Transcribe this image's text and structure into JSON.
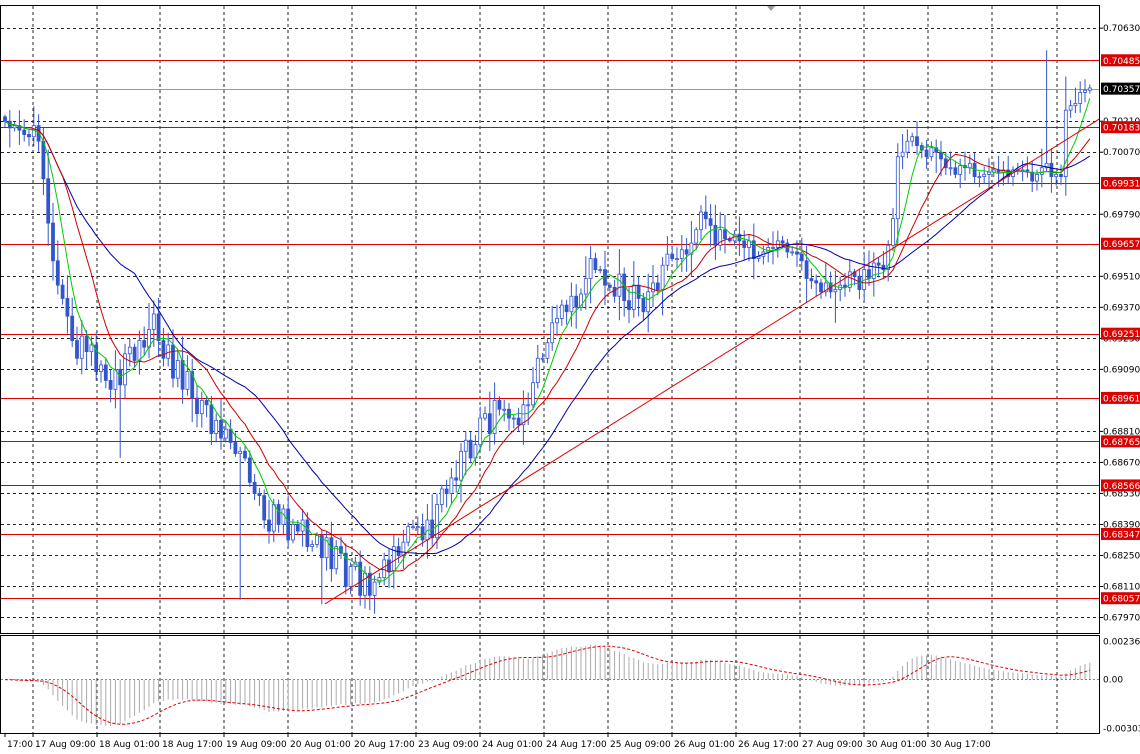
{
  "colors": {
    "background": "#ffffff",
    "grid": "#000000",
    "candles": "#3355cc",
    "ma_fast": "#00cc00",
    "ma_mid": "#cc0000",
    "ma_slow": "#0000aa",
    "level_lines": "#dd0000",
    "trend_line": "#dd0000",
    "current_price_bg": "#000000",
    "level_label_bg": "#dd0000",
    "label_text": "#ffffff",
    "axis_text": "#000000",
    "osc_hist": "#aaaaaa",
    "osc_signal": "#dd0000"
  },
  "chart_data": {
    "type": "candlestick",
    "price_axis_ticks": [
      "0.70630",
      "0.70210",
      "0.70070",
      "0.69790",
      "0.69510",
      "0.69370",
      "0.69230",
      "0.69090",
      "0.68810",
      "0.68670",
      "0.68530",
      "0.68390",
      "0.68250",
      "0.68110",
      "0.67970"
    ],
    "level_labels": [
      "0.70485",
      "0.70183",
      "0.69931",
      "0.69657",
      "0.69251",
      "0.68961",
      "0.68765",
      "0.68566",
      "0.68347",
      "0.68057"
    ],
    "current_price": "0.70357",
    "ylim": [
      0.679,
      0.7073
    ],
    "time_labels": [
      "17:00",
      "17 Aug 09:00",
      "18 Aug 01:00",
      "18 Aug 17:00",
      "19 Aug 09:00",
      "20 Aug 01:00",
      "20 Aug 17:00",
      "23 Aug 09:00",
      "24 Aug 01:00",
      "24 Aug 17:00",
      "25 Aug 09:00",
      "26 Aug 01:00",
      "26 Aug 17:00",
      "27 Aug 09:00",
      "30 Aug 01:00",
      "30 Aug 17:00"
    ],
    "trend_line": {
      "from": {
        "bar": 40,
        "price": 0.68031
      },
      "to": {
        "bar": 223,
        "price": 0.70219
      }
    },
    "close": [
      0.7021,
      0.7018,
      0.7019,
      0.7017,
      0.7015,
      0.7014,
      0.7019,
      0.7012,
      0.6995,
      0.6975,
      0.6958,
      0.6947,
      0.6941,
      0.6933,
      0.6922,
      0.6914,
      0.6924,
      0.6917,
      0.692,
      0.6908,
      0.6911,
      0.6904,
      0.69,
      0.6909,
      0.6902,
      0.6916,
      0.6919,
      0.6913,
      0.6922,
      0.6919,
      0.6927,
      0.6934,
      0.6922,
      0.6914,
      0.692,
      0.6905,
      0.6913,
      0.69,
      0.6908,
      0.6896,
      0.6889,
      0.6895,
      0.6893,
      0.688,
      0.6886,
      0.6878,
      0.6882,
      0.6876,
      0.6871,
      0.6872,
      0.6869,
      0.6858,
      0.6853,
      0.6852,
      0.6841,
      0.6836,
      0.6848,
      0.6839,
      0.6846,
      0.6832,
      0.6839,
      0.6836,
      0.6841,
      0.6829,
      0.683,
      0.6834,
      0.6824,
      0.6833,
      0.6819,
      0.6829,
      0.6826,
      0.6811,
      0.682,
      0.6822,
      0.6807,
      0.6817,
      0.6807,
      0.6813,
      0.6815,
      0.6823,
      0.6818,
      0.6829,
      0.6825,
      0.6831,
      0.6838,
      0.6838,
      0.6838,
      0.6832,
      0.6841,
      0.6833,
      0.6848,
      0.6855,
      0.6853,
      0.686,
      0.6859,
      0.6872,
      0.6877,
      0.6869,
      0.6875,
      0.6887,
      0.6889,
      0.688,
      0.6895,
      0.6891,
      0.6891,
      0.6887,
      0.6887,
      0.6884,
      0.6893,
      0.6893,
      0.6903,
      0.6914,
      0.6914,
      0.6921,
      0.693,
      0.6932,
      0.6938,
      0.6935,
      0.6942,
      0.6937,
      0.6943,
      0.695,
      0.6959,
      0.6954,
      0.6954,
      0.6947,
      0.6946,
      0.6942,
      0.6952,
      0.694,
      0.6936,
      0.6947,
      0.6941,
      0.6935,
      0.6944,
      0.6948,
      0.6945,
      0.6956,
      0.6961,
      0.6959,
      0.6959,
      0.6963,
      0.6961,
      0.6966,
      0.6972,
      0.698,
      0.6977,
      0.6974,
      0.6965,
      0.6972,
      0.6968,
      0.6967,
      0.697,
      0.6967,
      0.6964,
      0.6967,
      0.6959,
      0.696,
      0.6962,
      0.6964,
      0.6964,
      0.6967,
      0.6966,
      0.6962,
      0.6962,
      0.6961,
      0.6958,
      0.695,
      0.6949,
      0.6948,
      0.6944,
      0.6948,
      0.6944,
      0.6945,
      0.6947,
      0.6946,
      0.6953,
      0.6951,
      0.6945,
      0.6954,
      0.695,
      0.6957,
      0.6956,
      0.6954,
      0.6965,
      0.6977,
      0.7005,
      0.7007,
      0.7012,
      0.7014,
      0.701,
      0.7008,
      0.7005,
      0.7009,
      0.7007,
      0.7004,
      0.7,
      0.7,
      0.6997,
      0.7001,
      0.7,
      0.7002,
      0.6996,
      0.6996,
      0.6997,
      0.6998,
      0.6999,
      0.6998,
      0.6999,
      0.6996,
      0.6999,
      0.6999,
      0.6999,
      0.6998,
      0.6994,
      0.6997,
      0.7,
      0.7002,
      0.6996,
      0.6997,
      0.6996,
      0.7026,
      0.7028,
      0.7029,
      0.7034,
      0.7035,
      0.7036
    ],
    "oscillator_ticks": [
      "0.002364",
      "0.00",
      "-0.00303"
    ],
    "oscillator_ylim": [
      -0.0033,
      0.0027
    ]
  }
}
